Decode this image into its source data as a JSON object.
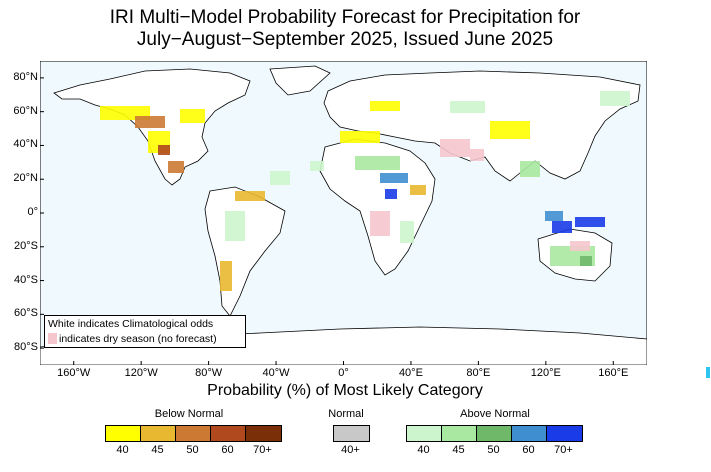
{
  "title": {
    "line1": "IRI Multi−Model Probability Forecast for Precipitation for",
    "line2": "July−August−September 2025, Issued June 2025"
  },
  "axes": {
    "lat_labels": [
      "80°N",
      "60°N",
      "40°N",
      "20°N",
      "0°",
      "20°S",
      "40°S",
      "60°S",
      "80°S"
    ],
    "lon_labels": [
      "160°W",
      "120°W",
      "80°W",
      "40°W",
      "0°",
      "40°E",
      "80°E",
      "120°E",
      "160°E"
    ],
    "x_title": "Probability (%) of Most Likely Category"
  },
  "legend_box": {
    "line1": "White indicates Climatological odds",
    "line2": "indicates dry season (no forecast)",
    "dry_color": "#f5c6cd"
  },
  "colorbars": {
    "below": {
      "title": "Below Normal",
      "labels": [
        "40",
        "45",
        "50",
        "60",
        "70+"
      ],
      "colors": [
        "#ffff00",
        "#e8b830",
        "#cc7a33",
        "#b04a1e",
        "#7a2f08"
      ]
    },
    "normal": {
      "title": "Normal",
      "labels": [
        "40+"
      ],
      "colors": [
        "#c8c8c8"
      ]
    },
    "above": {
      "title": "Above Normal",
      "labels": [
        "40",
        "45",
        "50",
        "60",
        "70+"
      ],
      "colors": [
        "#cdf5cd",
        "#a8e8a0",
        "#6fb86a",
        "#3f8fd0",
        "#1a3be8"
      ]
    }
  },
  "map": {
    "ocean_color": "#f0f9fe",
    "land_color": "#ffffff",
    "coast_color": "#000000"
  }
}
